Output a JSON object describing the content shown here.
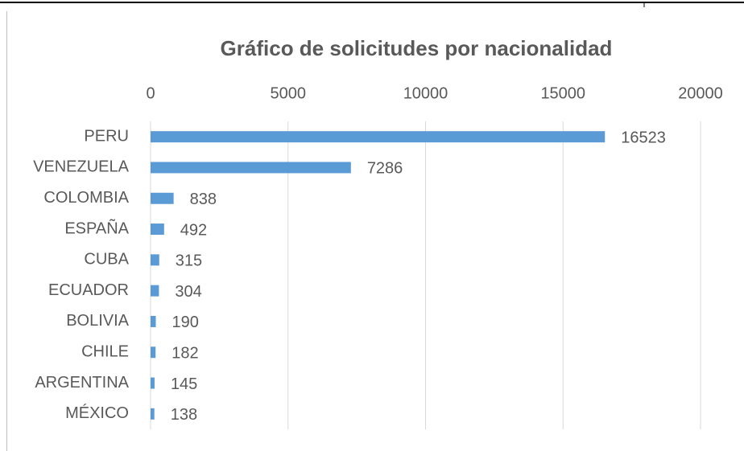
{
  "chart_data": {
    "type": "bar",
    "orientation": "horizontal",
    "title": "Gráfico de solicitudes por nacionalidad",
    "categories": [
      "PERU",
      "VENEZUELA",
      "COLOMBIA",
      "ESPAÑA",
      "CUBA",
      "ECUADOR",
      "BOLIVIA",
      "CHILE",
      "ARGENTINA",
      "MÉXICO"
    ],
    "values": [
      16523,
      7286,
      838,
      492,
      315,
      304,
      190,
      182,
      145,
      138
    ],
    "color": "#5b9bd5",
    "xlim": [
      0,
      20000
    ],
    "xticks": [
      0,
      5000,
      10000,
      15000,
      20000
    ],
    "grid": true,
    "x_axis_position": "top"
  }
}
